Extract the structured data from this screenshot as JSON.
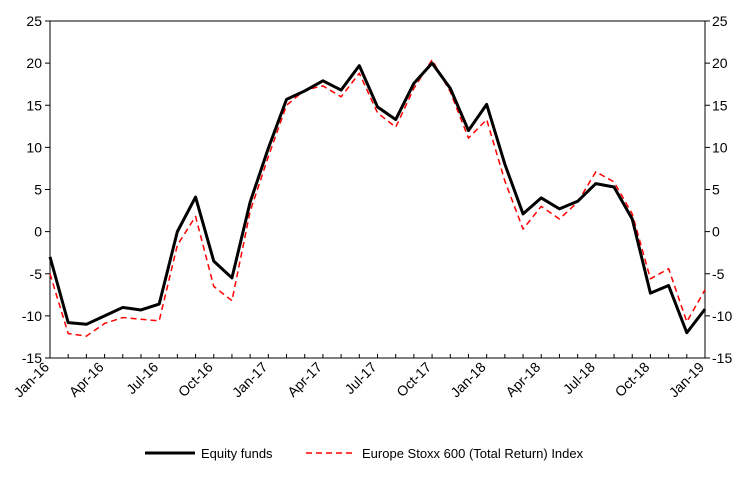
{
  "chart_data": {
    "type": "line",
    "title": "",
    "xlabel": "",
    "ylabel": "",
    "ylim": [
      -15,
      25
    ],
    "y_ticks": [
      -15,
      -10,
      -5,
      0,
      5,
      10,
      15,
      20,
      25
    ],
    "y_tick_labels": [
      "-15",
      "-10",
      "-5",
      "0",
      "5",
      "10",
      "15",
      "20",
      "25"
    ],
    "x_tick_labels": [
      "Jan-16",
      "Apr-16",
      "Jul-16",
      "Oct-16",
      "Jan-17",
      "Apr-17",
      "Jul-17",
      "Oct-17",
      "Jan-18",
      "Apr-18",
      "Jul-18",
      "Oct-18",
      "Jan-19"
    ],
    "grid": false,
    "legend_position": "bottom",
    "x": [
      "2016-01",
      "2016-02",
      "2016-03",
      "2016-04",
      "2016-05",
      "2016-06",
      "2016-07",
      "2016-08",
      "2016-09",
      "2016-10",
      "2016-11",
      "2016-12",
      "2017-01",
      "2017-02",
      "2017-03",
      "2017-04",
      "2017-05",
      "2017-06",
      "2017-07",
      "2017-08",
      "2017-09",
      "2017-10",
      "2017-11",
      "2017-12",
      "2018-01",
      "2018-02",
      "2018-03",
      "2018-04",
      "2018-05",
      "2018-06",
      "2018-07",
      "2018-08",
      "2018-09",
      "2018-10",
      "2018-11",
      "2018-12",
      "2019-01"
    ],
    "series": [
      {
        "name": "Equity funds",
        "color": "#000000",
        "style": "solid",
        "values": [
          -3,
          -10.8,
          -11,
          -10,
          -9,
          -9.3,
          -8.6,
          0,
          4.1,
          -3.5,
          -5.5,
          3.5,
          9.9,
          15.7,
          16.7,
          17.9,
          16.8,
          19.7,
          14.8,
          13.3,
          17.6,
          20,
          17,
          12,
          15.1,
          8,
          2.1,
          4,
          2.7,
          3.6,
          5.7,
          5.3,
          1.5,
          -7.3,
          -6.4,
          -12,
          -9.2
        ]
      },
      {
        "name": "Europe Stoxx 600 (Total Return) Index",
        "color": "#ff0000",
        "style": "dashed",
        "values": [
          -5,
          -12.1,
          -12.4,
          -10.9,
          -10.2,
          -10.4,
          -10.6,
          -1.6,
          1.8,
          -6.5,
          -8.2,
          2.4,
          8.9,
          15,
          16.8,
          17.3,
          16,
          18.8,
          14.1,
          12.4,
          17,
          20.4,
          16.6,
          11.1,
          13.3,
          6,
          0.3,
          3,
          1.5,
          3.5,
          7.1,
          5.9,
          2.1,
          -5.6,
          -4.4,
          -10.7,
          -6.9
        ]
      }
    ]
  }
}
